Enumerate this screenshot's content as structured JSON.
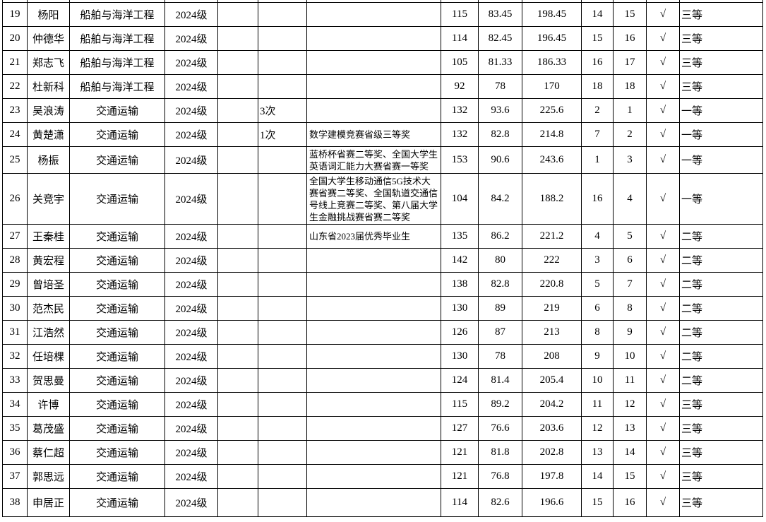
{
  "rows": [
    {
      "no": "19",
      "name": "杨阳",
      "major": "船舶与海洋工程",
      "grade": "2024级",
      "c5": "",
      "c6": "",
      "award": "",
      "s1": "115",
      "s2": "83.45",
      "total": "198.45",
      "r1": "14",
      "r2": "15",
      "check": "√",
      "level": "三等"
    },
    {
      "no": "20",
      "name": "仲德华",
      "major": "船舶与海洋工程",
      "grade": "2024级",
      "c5": "",
      "c6": "",
      "award": "",
      "s1": "114",
      "s2": "82.45",
      "total": "196.45",
      "r1": "15",
      "r2": "16",
      "check": "√",
      "level": "三等"
    },
    {
      "no": "21",
      "name": "郑志飞",
      "major": "船舶与海洋工程",
      "grade": "2024级",
      "c5": "",
      "c6": "",
      "award": "",
      "s1": "105",
      "s2": "81.33",
      "total": "186.33",
      "r1": "16",
      "r2": "17",
      "check": "√",
      "level": "三等"
    },
    {
      "no": "22",
      "name": "杜新科",
      "major": "船舶与海洋工程",
      "grade": "2024级",
      "c5": "",
      "c6": "",
      "award": "",
      "s1": "92",
      "s2": "78",
      "total": "170",
      "r1": "18",
      "r2": "18",
      "check": "√",
      "level": "三等"
    },
    {
      "no": "23",
      "name": "吴浪涛",
      "major": "交通运输",
      "grade": "2024级",
      "c5": "",
      "c6": "3次",
      "award": "",
      "s1": "132",
      "s2": "93.6",
      "total": "225.6",
      "r1": "2",
      "r2": "1",
      "check": "√",
      "level": "一等"
    },
    {
      "no": "24",
      "name": "黄楚潇",
      "major": "交通运输",
      "grade": "2024级",
      "c5": "",
      "c6": "1次",
      "award": "数学建模竞赛省级三等奖",
      "s1": "132",
      "s2": "82.8",
      "total": "214.8",
      "r1": "7",
      "r2": "2",
      "check": "√",
      "level": "一等"
    },
    {
      "no": "25",
      "name": "杨振",
      "major": "交通运输",
      "grade": "2024级",
      "c5": "",
      "c6": "",
      "award": "蓝桥杯省赛二等奖、全国大学生英语词汇能力大赛省赛一等奖",
      "s1": "153",
      "s2": "90.6",
      "total": "243.6",
      "r1": "1",
      "r2": "3",
      "check": "√",
      "level": "一等"
    },
    {
      "no": "26",
      "name": "关竞宇",
      "major": "交通运输",
      "grade": "2024级",
      "c5": "",
      "c6": "",
      "award": "全国大学生移动通信5G技术大赛省赛二等奖、全国轨道交通信号线上竞赛二等奖、第八届大学生金融挑战赛省赛二等奖",
      "s1": "104",
      "s2": "84.2",
      "total": "188.2",
      "r1": "16",
      "r2": "4",
      "check": "√",
      "level": "一等"
    },
    {
      "no": "27",
      "name": "王秦桂",
      "major": "交通运输",
      "grade": "2024级",
      "c5": "",
      "c6": "",
      "award": "山东省2023届优秀毕业生",
      "s1": "135",
      "s2": "86.2",
      "total": "221.2",
      "r1": "4",
      "r2": "5",
      "check": "√",
      "level": "二等"
    },
    {
      "no": "28",
      "name": "黄宏程",
      "major": "交通运输",
      "grade": "2024级",
      "c5": "",
      "c6": "",
      "award": "",
      "s1": "142",
      "s2": "80",
      "total": "222",
      "r1": "3",
      "r2": "6",
      "check": "√",
      "level": "二等"
    },
    {
      "no": "29",
      "name": "曾培圣",
      "major": "交通运输",
      "grade": "2024级",
      "c5": "",
      "c6": "",
      "award": "",
      "s1": "138",
      "s2": "82.8",
      "total": "220.8",
      "r1": "5",
      "r2": "7",
      "check": "√",
      "level": "二等"
    },
    {
      "no": "30",
      "name": "范杰民",
      "major": "交通运输",
      "grade": "2024级",
      "c5": "",
      "c6": "",
      "award": "",
      "s1": "130",
      "s2": "89",
      "total": "219",
      "r1": "6",
      "r2": "8",
      "check": "√",
      "level": "二等"
    },
    {
      "no": "31",
      "name": "江浩然",
      "major": "交通运输",
      "grade": "2024级",
      "c5": "",
      "c6": "",
      "award": "",
      "s1": "126",
      "s2": "87",
      "total": "213",
      "r1": "8",
      "r2": "9",
      "check": "√",
      "level": "二等"
    },
    {
      "no": "32",
      "name": "任培棵",
      "major": "交通运输",
      "grade": "2024级",
      "c5": "",
      "c6": "",
      "award": "",
      "s1": "130",
      "s2": "78",
      "total": "208",
      "r1": "9",
      "r2": "10",
      "check": "√",
      "level": "二等"
    },
    {
      "no": "33",
      "name": "贺思曼",
      "major": "交通运输",
      "grade": "2024级",
      "c5": "",
      "c6": "",
      "award": "",
      "s1": "124",
      "s2": "81.4",
      "total": "205.4",
      "r1": "10",
      "r2": "11",
      "check": "√",
      "level": "二等"
    },
    {
      "no": "34",
      "name": "许博",
      "major": "交通运输",
      "grade": "2024级",
      "c5": "",
      "c6": "",
      "award": "",
      "s1": "115",
      "s2": "89.2",
      "total": "204.2",
      "r1": "11",
      "r2": "12",
      "check": "√",
      "level": "三等"
    },
    {
      "no": "35",
      "name": "葛茂盛",
      "major": "交通运输",
      "grade": "2024级",
      "c5": "",
      "c6": "",
      "award": "",
      "s1": "127",
      "s2": "76.6",
      "total": "203.6",
      "r1": "12",
      "r2": "13",
      "check": "√",
      "level": "三等"
    },
    {
      "no": "36",
      "name": "蔡仁超",
      "major": "交通运输",
      "grade": "2024级",
      "c5": "",
      "c6": "",
      "award": "",
      "s1": "121",
      "s2": "81.8",
      "total": "202.8",
      "r1": "13",
      "r2": "14",
      "check": "√",
      "level": "三等"
    },
    {
      "no": "37",
      "name": "郭思远",
      "major": "交通运输",
      "grade": "2024级",
      "c5": "",
      "c6": "",
      "award": "",
      "s1": "121",
      "s2": "76.8",
      "total": "197.8",
      "r1": "14",
      "r2": "15",
      "check": "√",
      "level": "三等"
    },
    {
      "no": "38",
      "name": "申居正",
      "major": "交通运输",
      "grade": "2024级",
      "c5": "",
      "c6": "",
      "award": "",
      "s1": "114",
      "s2": "82.6",
      "total": "196.6",
      "r1": "15",
      "r2": "16",
      "check": "√",
      "level": "三等"
    }
  ]
}
